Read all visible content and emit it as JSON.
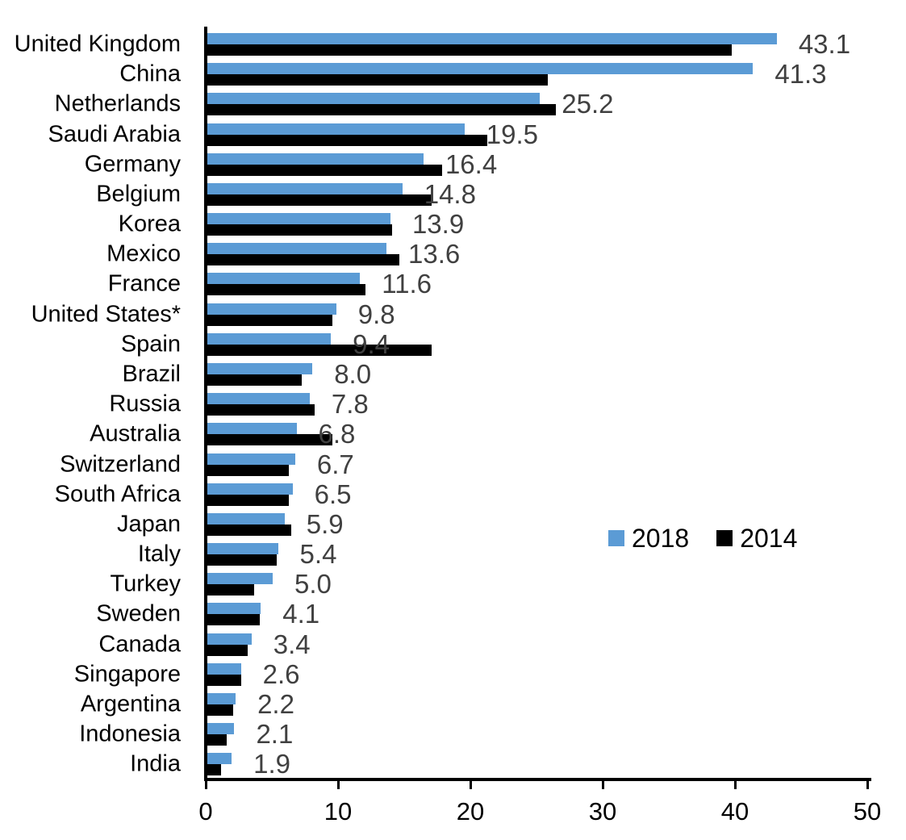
{
  "chart_data": {
    "type": "bar",
    "orientation": "horizontal",
    "title": "",
    "categories": [
      "United Kingdom",
      "China",
      "Netherlands",
      "Saudi Arabia",
      "Germany",
      "Belgium",
      "Korea",
      "Mexico",
      "France",
      "United States*",
      "Spain",
      "Brazil",
      "Russia",
      "Australia",
      "Switzerland",
      "South Africa",
      "Japan",
      "Italy",
      "Turkey",
      "Sweden",
      "Canada",
      "Singapore",
      "Argentina",
      "Indonesia",
      "India"
    ],
    "series": [
      {
        "name": "2018",
        "color": "#5B9BD5",
        "values": [
          43.1,
          41.3,
          25.2,
          19.5,
          16.4,
          14.8,
          13.9,
          13.6,
          11.6,
          9.8,
          9.4,
          8.0,
          7.8,
          6.8,
          6.7,
          6.5,
          5.9,
          5.4,
          5.0,
          4.1,
          3.4,
          2.6,
          2.2,
          2.1,
          1.9
        ]
      },
      {
        "name": "2014",
        "color": "#000000",
        "values": [
          39.7,
          25.8,
          26.4,
          21.2,
          17.8,
          17.0,
          14.0,
          14.6,
          12.0,
          9.5,
          17.0,
          7.2,
          8.2,
          9.5,
          6.2,
          6.2,
          6.4,
          5.3,
          3.6,
          4.0,
          3.1,
          2.6,
          2.0,
          1.5,
          1.1
        ]
      }
    ],
    "data_labels": [
      "43.1",
      "41.3",
      "25.2",
      "19.5",
      "16.4",
      "14.8",
      "13.9",
      "13.6",
      "11.6",
      "9.8",
      "9.4",
      "8.0",
      "7.8",
      "6.8",
      "6.7",
      "6.5",
      "5.9",
      "5.4",
      "5.0",
      "4.1",
      "3.4",
      "2.6",
      "2.2",
      "2.1",
      "1.9"
    ],
    "data_label_series": "2018",
    "data_label_color": "#404040",
    "xlim": [
      0,
      50
    ],
    "x_ticks": [
      "0",
      "10",
      "20",
      "30",
      "40",
      "50"
    ],
    "grid": false,
    "legend_position": "middle-right",
    "background_color": "#FFFFFF",
    "axis_color": "#000000"
  }
}
